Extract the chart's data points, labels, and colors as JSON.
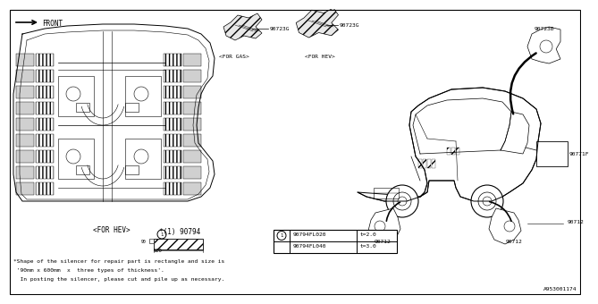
{
  "background_color": "#ffffff",
  "diagram_labels": {
    "front_label": "FRONT",
    "for_hev_bottom": "<FOR HEV>",
    "for_gas": "<FOR GAS>",
    "for_hev_top": "<FOR HEV>",
    "part_90794": "*(1) 90794",
    "part_90723G_left": "90723G",
    "part_90723G_right": "90723G",
    "part_90723B": "90723B",
    "part_90771F": "90771F",
    "part_90712_left": "90712",
    "part_90712_right": "90712"
  },
  "table_data": [
    {
      "part": "90794FL020",
      "thickness": "t=2.0"
    },
    {
      "part": "90794FL040",
      "thickness": "t=3.0"
    }
  ],
  "footnote_lines": [
    "*Shape of the silencer for repair part is rectangle and size is",
    " '90mm x 600mm  x  three types of thickness'.",
    "  In posting the silencer, please cut and pile up as necessary."
  ],
  "diagram_id": "A953001174"
}
